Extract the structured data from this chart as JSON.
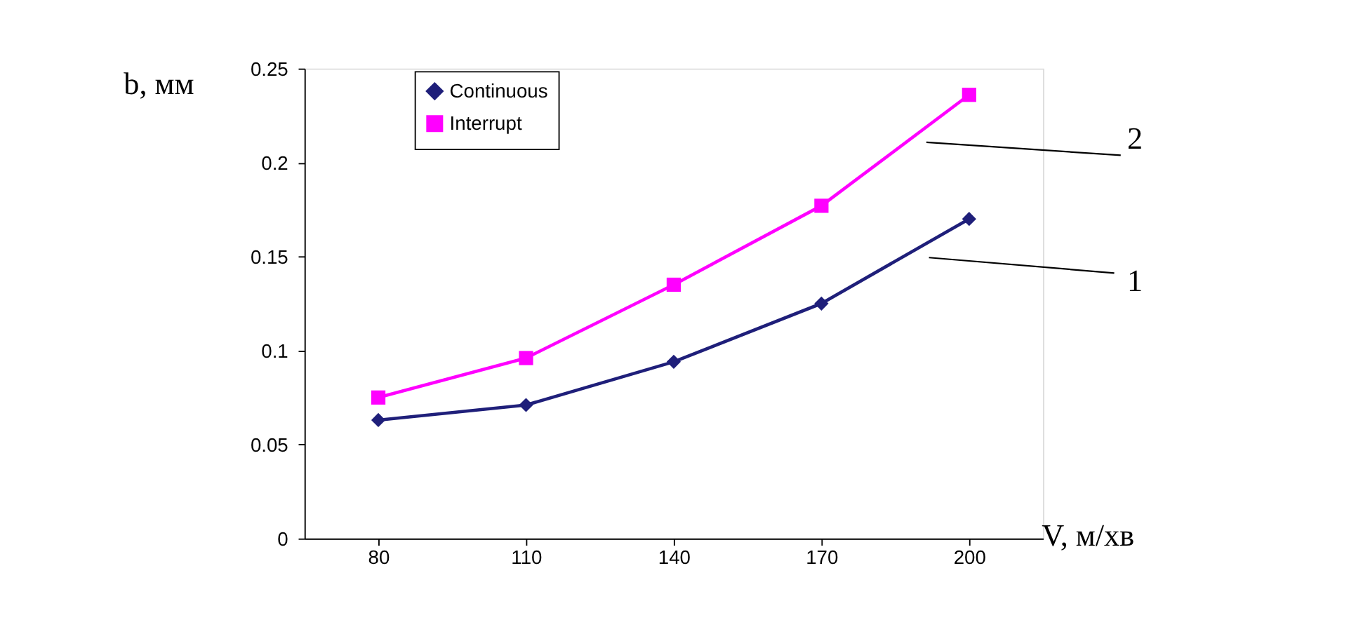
{
  "chart_data": {
    "type": "line",
    "xlabel": "V, м/хв",
    "ylabel": "b, мм",
    "categories": [
      "80",
      "110",
      "140",
      "170",
      "200"
    ],
    "series": [
      {
        "name": "Continuous",
        "color": "#1f1f7a",
        "marker": "diamond",
        "values": [
          0.063,
          0.071,
          0.094,
          0.125,
          0.17
        ]
      },
      {
        "name": "Interrupt",
        "color": "#ff00ff",
        "marker": "square",
        "values": [
          0.075,
          0.096,
          0.135,
          0.177,
          0.236
        ]
      }
    ],
    "ylim": [
      0,
      0.25
    ],
    "yticks": [
      0,
      0.05,
      0.1,
      0.15,
      0.2,
      0.25
    ],
    "grid": false,
    "legend": "top left",
    "line_style": "solid",
    "annotations": [
      "1",
      "2"
    ]
  }
}
